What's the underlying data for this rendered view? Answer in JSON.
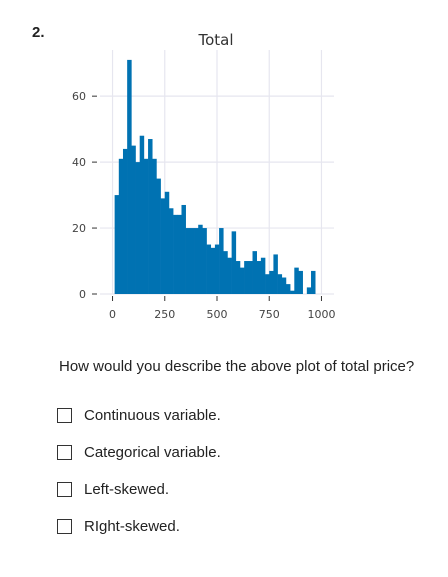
{
  "question_number": "2.",
  "question_text": "How would you describe the above plot of total price?",
  "options": [
    {
      "label": "Continuous variable."
    },
    {
      "label": "Categorical variable."
    },
    {
      "label": "Left-skewed."
    },
    {
      "label": "RIght-skewed."
    }
  ],
  "chart_data": {
    "type": "bar",
    "title": "Total",
    "xlabel": "",
    "ylabel": "",
    "xlim": [
      -60,
      1060
    ],
    "ylim": [
      0,
      74
    ],
    "xticks": [
      0,
      250,
      500,
      750,
      1000
    ],
    "yticks": [
      0,
      20,
      40,
      60
    ],
    "grid": true,
    "bar_color": "#0072b2",
    "bin_start": 10,
    "bin_width": 20,
    "values": [
      30,
      41,
      44,
      71,
      45,
      40,
      48,
      41,
      47,
      41,
      35,
      29,
      31,
      26,
      24,
      24,
      27,
      20,
      20,
      20,
      21,
      20,
      15,
      14,
      15,
      20,
      13,
      11,
      19,
      10,
      8,
      10,
      10,
      13,
      10,
      11,
      6,
      7,
      12,
      6,
      5,
      3,
      1,
      8,
      7,
      0,
      2,
      7
    ]
  }
}
